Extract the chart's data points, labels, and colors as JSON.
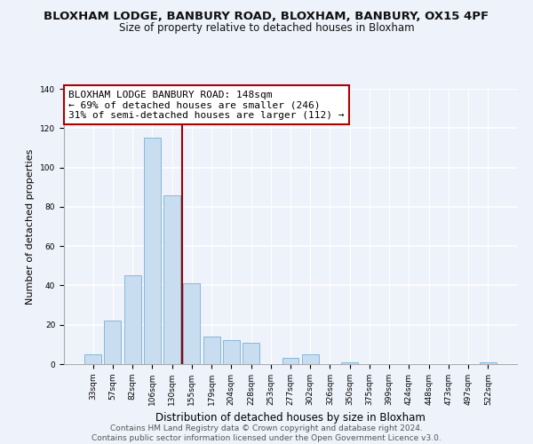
{
  "title": "BLOXHAM LODGE, BANBURY ROAD, BLOXHAM, BANBURY, OX15 4PF",
  "subtitle": "Size of property relative to detached houses in Bloxham",
  "xlabel": "Distribution of detached houses by size in Bloxham",
  "ylabel": "Number of detached properties",
  "bar_labels": [
    "33sqm",
    "57sqm",
    "82sqm",
    "106sqm",
    "130sqm",
    "155sqm",
    "179sqm",
    "204sqm",
    "228sqm",
    "253sqm",
    "277sqm",
    "302sqm",
    "326sqm",
    "350sqm",
    "375sqm",
    "399sqm",
    "424sqm",
    "448sqm",
    "473sqm",
    "497sqm",
    "522sqm"
  ],
  "bar_values": [
    5,
    22,
    45,
    115,
    86,
    41,
    14,
    12,
    11,
    0,
    3,
    5,
    0,
    1,
    0,
    0,
    0,
    0,
    0,
    0,
    1
  ],
  "bar_color": "#c8ddf0",
  "bar_edge_color": "#7aafd4",
  "vertical_line_x": 4.5,
  "vertical_line_color": "#990000",
  "annotation_line1": "BLOXHAM LODGE BANBURY ROAD: 148sqm",
  "annotation_line2": "← 69% of detached houses are smaller (246)",
  "annotation_line3": "31% of semi-detached houses are larger (112) →",
  "annotation_box_facecolor": "#ffffff",
  "annotation_box_edgecolor": "#aa0000",
  "ylim": [
    0,
    140
  ],
  "yticks": [
    0,
    20,
    40,
    60,
    80,
    100,
    120,
    140
  ],
  "footer_line1": "Contains HM Land Registry data © Crown copyright and database right 2024.",
  "footer_line2": "Contains public sector information licensed under the Open Government Licence v3.0.",
  "background_color": "#eef2fb",
  "plot_bg_color": "#eef2fb",
  "title_fontsize": 9.5,
  "subtitle_fontsize": 8.5,
  "ylabel_fontsize": 8,
  "xlabel_fontsize": 8.5,
  "tick_fontsize": 6.5,
  "annotation_fontsize": 8,
  "footer_fontsize": 6.5
}
